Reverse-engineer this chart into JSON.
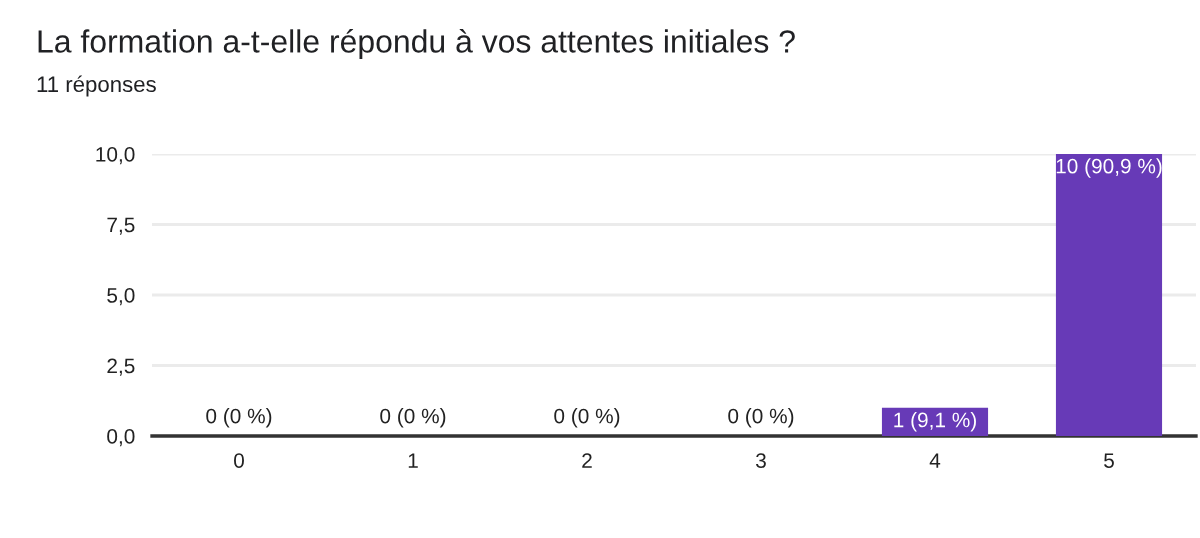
{
  "chart_data": {
    "type": "bar",
    "title": "La formation a-t-elle répondu à vos attentes initiales ?",
    "subtitle": "11 réponses",
    "categories": [
      "0",
      "1",
      "2",
      "3",
      "4",
      "5"
    ],
    "values": [
      0,
      0,
      0,
      0,
      1,
      10
    ],
    "value_labels": [
      "0 (0 %)",
      "0 (0 %)",
      "0 (0 %)",
      "0 (0 %)",
      "1 (9,1 %)",
      "10 (90,9 %)"
    ],
    "color": "#673ab7",
    "ylim": [
      0,
      10
    ],
    "yticks": [
      {
        "value": 0,
        "label": "0,0"
      },
      {
        "value": 2.5,
        "label": "2,5"
      },
      {
        "value": 5,
        "label": "5,0"
      },
      {
        "value": 7.5,
        "label": "7,5"
      },
      {
        "value": 10,
        "label": "10,0"
      }
    ],
    "grid": "y",
    "legend": false
  }
}
